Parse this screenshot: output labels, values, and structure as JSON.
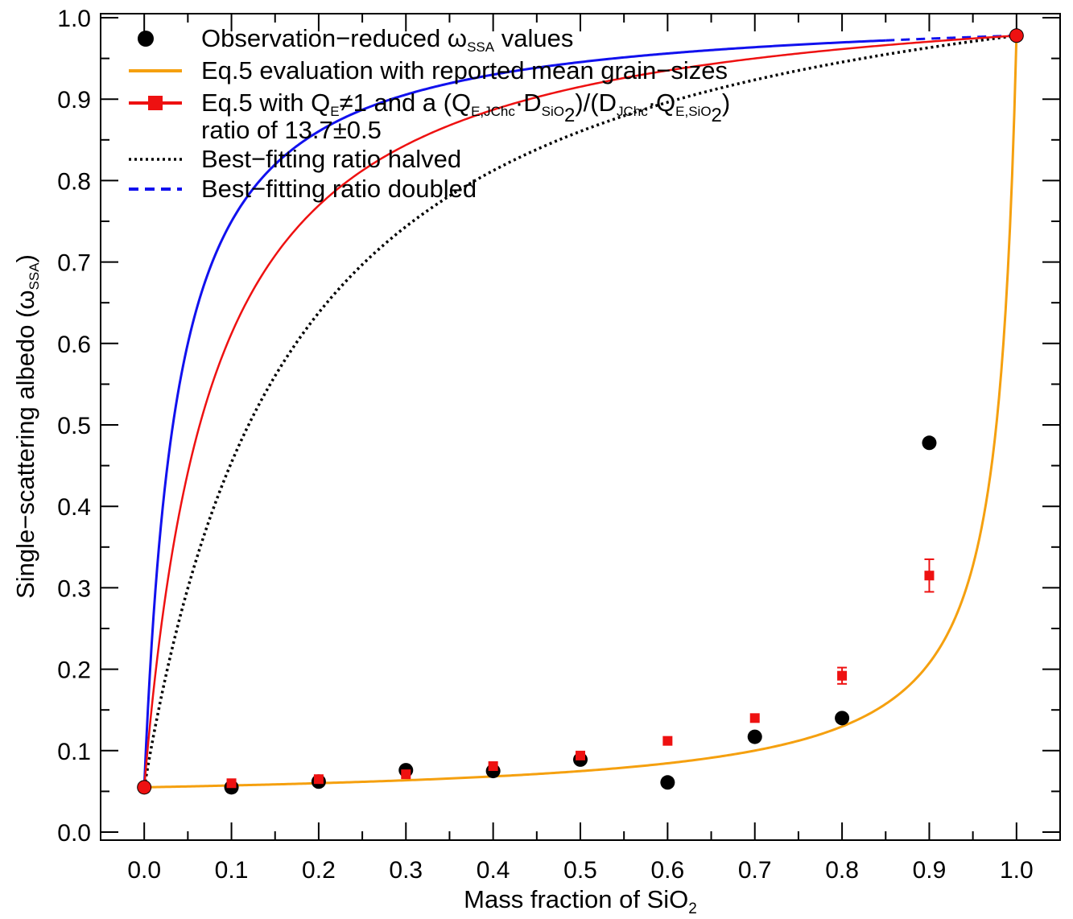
{
  "chart_data": {
    "type": "line",
    "title": "",
    "xlabel": "Mass fraction of SiO",
    "xlabel_sub": "2",
    "ylabel": "Single−scattering albedo (ω",
    "ylabel_sub": "SSA",
    "ylabel_close": ")",
    "xlim": [
      -0.05,
      1.05
    ],
    "ylim": [
      0.0,
      1.0
    ],
    "x_ticks": [
      "0.0",
      "0.1",
      "0.2",
      "0.3",
      "0.4",
      "0.5",
      "0.6",
      "0.7",
      "0.8",
      "0.9",
      "1.0"
    ],
    "y_ticks": [
      "0.0",
      "0.1",
      "0.2",
      "0.3",
      "0.4",
      "0.5",
      "0.6",
      "0.7",
      "0.8",
      "0.9",
      "1.0"
    ],
    "colors": {
      "observed": "#000000",
      "reported": "#f5a00f",
      "bestfit": "#ee1111",
      "halved": "#000000",
      "doubled": "#1111ee"
    },
    "series": [
      {
        "name": "Observation−reduced ωSSA values",
        "kind": "points",
        "x": [
          0.0,
          0.1,
          0.2,
          0.3,
          0.4,
          0.5,
          0.6,
          0.7,
          0.8,
          0.9,
          1.0
        ],
        "y": [
          0.055,
          0.055,
          0.062,
          0.076,
          0.075,
          0.089,
          0.061,
          0.117,
          0.14,
          0.478,
          0.978
        ]
      },
      {
        "name": "Eq.5 evaluation with reported mean grain−sizes",
        "kind": "curve",
        "ratio": 0.022
      },
      {
        "name": "Eq.5 with QE≠1 and a (QE,JChc·DSiO2)/(DJChc·QE,SiO2) ratio of 13.7±0.5",
        "kind": "points+curve",
        "ratio": 13.7,
        "x": [
          0.0,
          0.1,
          0.2,
          0.3,
          0.4,
          0.5,
          0.6,
          0.7,
          0.8,
          0.9,
          1.0
        ],
        "y": [
          0.055,
          0.06,
          0.065,
          0.071,
          0.081,
          0.094,
          0.112,
          0.14,
          0.192,
          0.315,
          0.978
        ],
        "err": [
          0,
          0,
          0,
          0,
          0,
          0,
          0,
          0,
          0.01,
          0.02,
          0
        ]
      },
      {
        "name": "Best−fitting ratio halved",
        "kind": "curve",
        "ratio": 6.85
      },
      {
        "name": "Best−fitting ratio doubled",
        "kind": "curve",
        "ratio": 27.4
      }
    ],
    "endpoints": {
      "w_jchc": 0.055,
      "w_sio2": 0.978
    },
    "legend": {
      "position": "top-left",
      "entries": [
        {
          "parts": [
            {
              "t": "Observation−reduced ω"
            },
            {
              "t": "SSA",
              "sub": true
            },
            {
              "t": " values"
            }
          ]
        },
        {
          "parts": [
            {
              "t": "Eq.5 evaluation with reported mean grain−sizes"
            }
          ]
        },
        {
          "parts": [
            {
              "t": "Eq.5 with Q"
            },
            {
              "t": "E",
              "sub": true
            },
            {
              "t": "≠1 and a (Q"
            },
            {
              "t": "E,JChc",
              "sub": true
            },
            {
              "t": "·D"
            },
            {
              "t": "SiO",
              "sub": true
            },
            {
              "t": "2",
              "sub2": true
            },
            {
              "t": ")/(D"
            },
            {
              "t": "JChc",
              "sub": true
            },
            {
              "t": "·Q"
            },
            {
              "t": "E,SiO",
              "sub": true
            },
            {
              "t": "2",
              "sub2": true
            },
            {
              "t": ")"
            }
          ]
        },
        {
          "parts": [
            {
              "t": "ratio of 13.7±0.5"
            }
          ]
        },
        {
          "parts": [
            {
              "t": "Best−fitting ratio halved"
            }
          ]
        },
        {
          "parts": [
            {
              "t": "Best−fitting ratio doubled"
            }
          ]
        }
      ]
    }
  }
}
